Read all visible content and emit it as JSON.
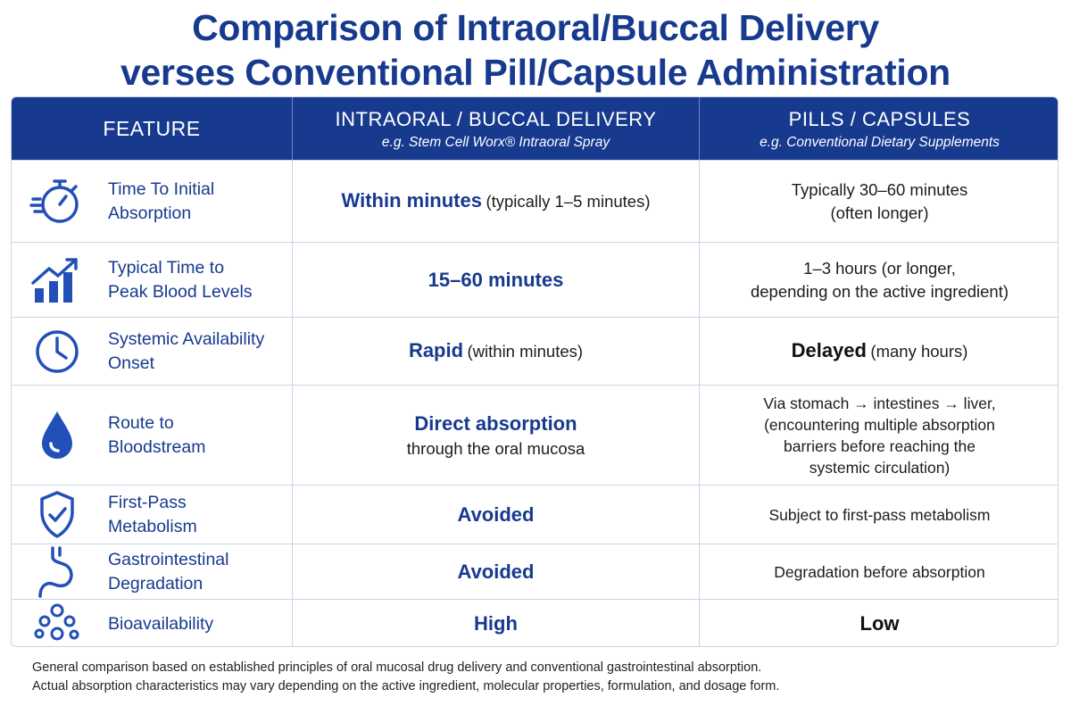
{
  "title": {
    "line1": "Comparison of Intraoral/Buccal Delivery",
    "line2": "verses Conventional Pill/Capsule Administration"
  },
  "header": {
    "feature": "FEATURE",
    "intraoral_title": "INTRAORAL / BUCCAL DELIVERY",
    "intraoral_sub": "e.g. Stem Cell Worx® Intraoral Spray",
    "pills_title": "PILLS / CAPSULES",
    "pills_sub": "e.g. Conventional Dietary Supplements"
  },
  "rows": [
    {
      "icon": "stopwatch-icon",
      "feature": "Time To Initial\nAbsorption",
      "intraoral_main": "Within minutes",
      "intraoral_note": "(typically 1–5 minutes)",
      "pills_main": "",
      "pills_note": "Typically 30–60 minutes\n(often longer)"
    },
    {
      "icon": "rising-bar-chart-icon",
      "feature": "Typical Time to\nPeak Blood Levels",
      "intraoral_main": "15–60 minutes",
      "intraoral_note": "",
      "pills_main": "",
      "pills_note": "1–3 hours (or longer,\ndepending on the active ingredient)"
    },
    {
      "icon": "clock-icon",
      "feature": "Systemic Availability\nOnset",
      "intraoral_main": "Rapid",
      "intraoral_note": "(within minutes)",
      "pills_main": "Delayed",
      "pills_note": "(many hours)"
    },
    {
      "icon": "blood-drop-icon",
      "feature": "Route to\nBloodstream",
      "intraoral_main": "Direct absorption",
      "intraoral_note": "through the oral mucosa",
      "pills_main": "",
      "pills_note": "Via stomach → intestines → liver,\n(encountering multiple absorption\nbarriers before reaching the\nsystemic circulation)"
    },
    {
      "icon": "shield-check-icon",
      "feature": "First-Pass\nMetabolism",
      "intraoral_main": "Avoided",
      "intraoral_note": "",
      "pills_main": "",
      "pills_note": "Subject to first-pass metabolism"
    },
    {
      "icon": "stomach-icon",
      "feature": "Gastrointestinal\nDegradation",
      "intraoral_main": "Avoided",
      "intraoral_note": "",
      "pills_main": "",
      "pills_note": "Degradation before absorption"
    },
    {
      "icon": "molecules-icon",
      "feature": "Bioavailability",
      "intraoral_main": "High",
      "intraoral_note": "",
      "pills_main": "Low",
      "pills_note": ""
    }
  ],
  "footer": {
    "line1": "General comparison based on established principles of oral mucosal drug delivery and conventional gastrointestinal absorption.",
    "line2": "Actual absorption characteristics may vary depending on the active ingredient, molecular properties, formulation,  and dosage form."
  },
  "colors": {
    "brand_navy": "#173a8f",
    "icon_blue": "#2250b8",
    "grid_line": "#c9d4e6"
  }
}
